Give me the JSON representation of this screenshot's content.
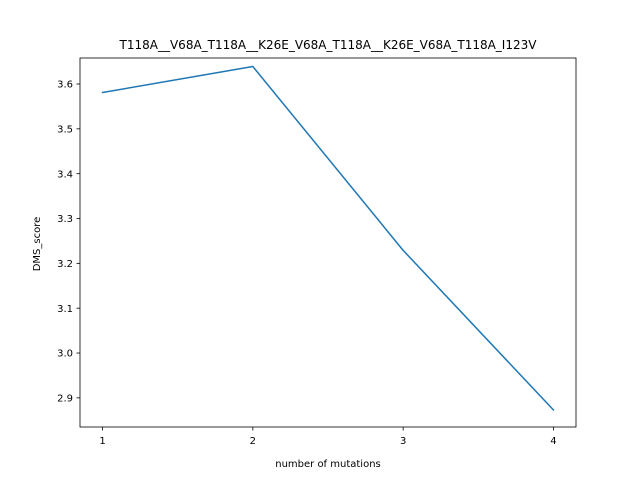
{
  "chart_data": {
    "type": "line",
    "title": "T118A__V68A_T118A__K26E_V68A_T118A__K26E_V68A_T118A_I123V",
    "xlabel": "number of mutations",
    "ylabel": "DMS_score",
    "x": [
      1,
      2,
      3,
      4
    ],
    "series": [
      {
        "values": [
          3.581,
          3.639,
          3.229,
          2.873
        ],
        "color": "#1f77b4"
      }
    ],
    "xlim": [
      0.85,
      4.15
    ],
    "ylim": [
      2.835,
      3.658
    ],
    "xticks": [
      1,
      2,
      3,
      4
    ],
    "xtick_labels": [
      "1",
      "2",
      "3",
      "4"
    ],
    "yticks": [
      2.9,
      3.0,
      3.1,
      3.2,
      3.3,
      3.4,
      3.5,
      3.6
    ],
    "ytick_labels": [
      "2.9",
      "3.0",
      "3.1",
      "3.2",
      "3.3",
      "3.4",
      "3.5",
      "3.6"
    ],
    "grid": false,
    "legend": "none"
  }
}
